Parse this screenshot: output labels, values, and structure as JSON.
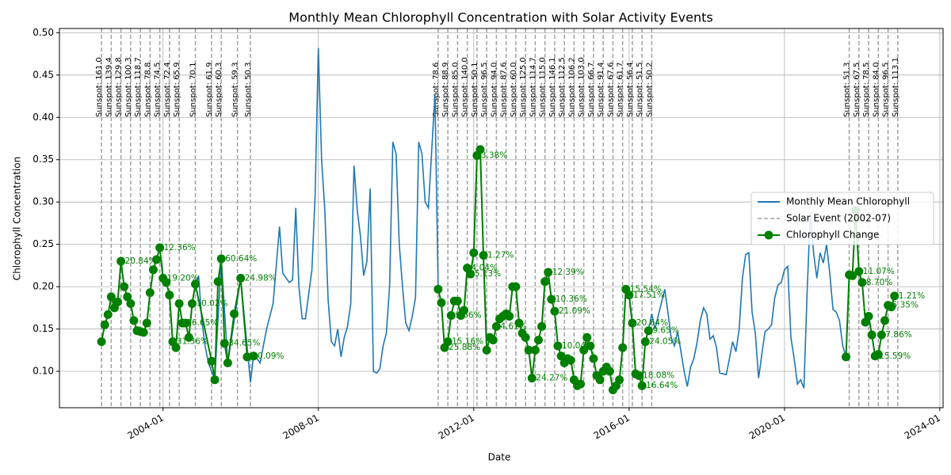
{
  "chart_data": {
    "type": "line",
    "title": "Monthly Mean Chlorophyll Concentration with Solar Activity Events",
    "xlabel": "Date",
    "ylabel": "Chlorophyll Concentration",
    "xlim": [
      "2001-05",
      "2024-02"
    ],
    "xticks": [
      "2004-01",
      "2008-01",
      "2012-01",
      "2016-01",
      "2020-01",
      "2024-01"
    ],
    "ylim": [
      0.057,
      0.505
    ],
    "yticks": [
      {
        "value": 0.1,
        "label": "0.10"
      },
      0.15,
      {
        "value": 0.2,
        "label": "0.20"
      },
      0.25,
      {
        "value": 0.3,
        "label": "0.30"
      },
      0.35,
      {
        "value": 0.4,
        "label": "0.40"
      },
      0.45,
      {
        "value": 0.5,
        "label": "0.50"
      }
    ],
    "grid": true,
    "legend": "center right",
    "series": [
      {
        "name": "Monthly Mean Chlorophyll",
        "color": "#1f77b4",
        "x": [
          "2002-06",
          "2002-07",
          "2002-08",
          "2002-09",
          "2002-10",
          "2002-11",
          "2002-12",
          "2003-01",
          "2003-02",
          "2003-03",
          "2003-04",
          "2003-05",
          "2003-06",
          "2003-07",
          "2003-08",
          "2003-09",
          "2003-10",
          "2003-11",
          "2003-12",
          "2004-01",
          "2004-02",
          "2004-03",
          "2004-04",
          "2004-05",
          "2004-06",
          "2004-07",
          "2004-08",
          "2004-09",
          "2004-10",
          "2004-11",
          "2004-12",
          "2005-01",
          "2005-02",
          "2005-03",
          "2005-05",
          "2005-07",
          "2005-09",
          "2006-01",
          "2006-04",
          "2006-05",
          "2006-07",
          "2006-09",
          "2006-11",
          "2007-01",
          "2007-02",
          "2007-04",
          "2007-05",
          "2007-06",
          "2007-07",
          "2007-08",
          "2007-09",
          "2007-11",
          "2007-12",
          "2008-01",
          "2008-02",
          "2008-03",
          "2008-04",
          "2008-05",
          "2008-06",
          "2008-07",
          "2008-08",
          "2008-09",
          "2008-10",
          "2008-11",
          "2008-12",
          "2009-01",
          "2009-02",
          "2009-03",
          "2009-04",
          "2009-05",
          "2009-06",
          "2009-07",
          "2009-08",
          "2009-09",
          "2009-10",
          "2009-11",
          "2009-12",
          "2010-01",
          "2010-02",
          "2010-03",
          "2010-04",
          "2010-05",
          "2010-06",
          "2010-07",
          "2010-08",
          "2010-09",
          "2010-10",
          "2010-11",
          "2011-01",
          "2011-02",
          "2011-03",
          "2011-04",
          "2011-05",
          "2011-06",
          "2011-07",
          "2011-08",
          "2011-09",
          "2011-10",
          "2011-11",
          "2011-12",
          "2012-01",
          "2012-02",
          "2012-03",
          "2012-04",
          "2012-05",
          "2012-06",
          "2012-07",
          "2012-08",
          "2012-09",
          "2012-10",
          "2012-11",
          "2012-12",
          "2013-01",
          "2013-02",
          "2013-03",
          "2013-04",
          "2013-05",
          "2013-06",
          "2013-07",
          "2013-08",
          "2013-09",
          "2013-10",
          "2013-11",
          "2013-12",
          "2014-01",
          "2014-02",
          "2014-03",
          "2014-04",
          "2014-05",
          "2014-06",
          "2014-07",
          "2014-08",
          "2014-09",
          "2014-10",
          "2014-11",
          "2014-12",
          "2015-01",
          "2015-02",
          "2015-03",
          "2015-04",
          "2015-05",
          "2015-06",
          "2015-07",
          "2015-08",
          "2015-09",
          "2015-10",
          "2015-11",
          "2015-12",
          "2016-01",
          "2016-02",
          "2016-03",
          "2016-04",
          "2016-05",
          "2016-06",
          "2016-07",
          "2016-08",
          "2016-09",
          "2016-12",
          "2017-01",
          "2017-02",
          "2017-03",
          "2017-04",
          "2017-06",
          "2017-07",
          "2017-08",
          "2017-09",
          "2017-10",
          "2017-11",
          "2017-12",
          "2018-01",
          "2018-02",
          "2018-03",
          "2018-04",
          "2018-05",
          "2018-07",
          "2018-08",
          "2018-09",
          "2018-10",
          "2018-11",
          "2018-12",
          "2019-01",
          "2019-02",
          "2019-03",
          "2019-04",
          "2019-05",
          "2019-06",
          "2019-07",
          "2019-08",
          "2019-09",
          "2019-10",
          "2019-11",
          "2019-12",
          "2020-01",
          "2020-02",
          "2020-03",
          "2020-04",
          "2020-05",
          "2020-06",
          "2020-07",
          "2020-08",
          "2020-09",
          "2020-10",
          "2020-11",
          "2020-12",
          "2021-01",
          "2021-02",
          "2021-03",
          "2021-04",
          "2021-05",
          "2021-06",
          "2021-07",
          "2021-08",
          "2021-09",
          "2021-10",
          "2021-11",
          "2021-12",
          "2022-01",
          "2022-02",
          "2022-03",
          "2022-04",
          "2022-05",
          "2022-06",
          "2022-07",
          "2022-08",
          "2022-09",
          "2022-10",
          "2022-11"
        ],
        "values": [
          0.135,
          0.155,
          0.167,
          0.188,
          0.175,
          0.182,
          0.23,
          0.2,
          0.188,
          0.18,
          0.16,
          0.148,
          0.147,
          0.146,
          0.157,
          0.193,
          0.22,
          0.232,
          0.246,
          0.21,
          0.205,
          0.19,
          0.135,
          0.128,
          0.18,
          0.157,
          0.157,
          0.14,
          0.18,
          0.203,
          0.213,
          0.16,
          0.13,
          0.11,
          0.09,
          0.233,
          0.11,
          0.21,
          0.087,
          0.12,
          0.11,
          0.15,
          0.18,
          0.271,
          0.216,
          0.205,
          0.208,
          0.293,
          0.2,
          0.162,
          0.162,
          0.22,
          0.31,
          0.482,
          0.35,
          0.29,
          0.185,
          0.135,
          0.13,
          0.15,
          0.117,
          0.14,
          0.153,
          0.18,
          0.343,
          0.29,
          0.26,
          0.213,
          0.23,
          0.316,
          0.1,
          0.098,
          0.103,
          0.13,
          0.145,
          0.2,
          0.371,
          0.357,
          0.25,
          0.2,
          0.157,
          0.148,
          0.165,
          0.187,
          0.371,
          0.357,
          0.3,
          0.293,
          0.427,
          0.197,
          0.181,
          0.128,
          0.135,
          0.166,
          0.183,
          0.183,
          0.166,
          0.172,
          0.222,
          0.215,
          0.24,
          0.355,
          0.362,
          0.237,
          0.125,
          0.14,
          0.137,
          0.153,
          0.162,
          0.165,
          0.168,
          0.165,
          0.2,
          0.2,
          0.157,
          0.145,
          0.14,
          0.125,
          0.092,
          0.125,
          0.137,
          0.153,
          0.206,
          0.217,
          0.185,
          0.171,
          0.13,
          0.118,
          0.11,
          0.115,
          0.113,
          0.09,
          0.083,
          0.085,
          0.125,
          0.14,
          0.13,
          0.115,
          0.095,
          0.09,
          0.1,
          0.105,
          0.1,
          0.078,
          0.083,
          0.09,
          0.128,
          0.197,
          0.19,
          0.157,
          0.097,
          0.095,
          0.083,
          0.135,
          0.148,
          0.168,
          0.15,
          0.197,
          0.17,
          0.14,
          0.13,
          0.147,
          0.1,
          0.082,
          0.105,
          0.115,
          0.134,
          0.16,
          0.175,
          0.168,
          0.138,
          0.142,
          0.128,
          0.098,
          0.096,
          0.115,
          0.135,
          0.123,
          0.15,
          0.21,
          0.238,
          0.24,
          0.17,
          0.145,
          0.092,
          0.12,
          0.147,
          0.15,
          0.155,
          0.187,
          0.202,
          0.205,
          0.22,
          0.224,
          0.14,
          0.115,
          0.085,
          0.09,
          0.08,
          0.195,
          0.287,
          0.24,
          0.21,
          0.24,
          0.228,
          0.25,
          0.215,
          0.173,
          0.17,
          0.16,
          0.13,
          0.117,
          0.214,
          0.213,
          0.29,
          0.218,
          0.205,
          0.158,
          0.165,
          0.143,
          0.118,
          0.12,
          0.143,
          0.16,
          0.178,
          0.176,
          0.189
        ]
      },
      {
        "name": "Chlorophyll Change",
        "color": "#008000",
        "marker": true,
        "x": [
          "2002-06",
          "2002-07",
          "2002-08",
          "2002-09",
          "2002-10",
          "2002-11",
          "2002-12",
          "2003-01",
          "2003-02",
          "2003-03",
          "2003-04",
          "2003-05",
          "2003-06",
          "2003-07",
          "2003-08",
          "2003-09",
          "2003-10",
          "2003-11",
          "2003-12",
          "2004-01",
          "2004-02",
          "2004-03",
          "2004-04",
          "2004-05",
          "2004-06",
          "2004-07",
          "2004-08",
          "2004-09",
          "2004-10",
          "2004-11",
          "2005-04",
          "2005-05",
          "2005-06",
          "2005-07",
          "2005-08",
          "2005-09",
          "2005-11",
          "2006-01",
          "2006-03",
          "2006-05",
          "2008-01",
          "2011-02",
          "2011-03",
          "2011-04",
          "2011-05",
          "2011-06",
          "2011-07",
          "2011-08",
          "2011-09",
          "2011-10",
          "2011-11",
          "2011-12",
          "2012-01",
          "2012-02",
          "2012-03",
          "2012-04",
          "2012-05",
          "2012-06",
          "2012-07",
          "2012-08",
          "2012-09",
          "2012-10",
          "2012-11",
          "2012-12",
          "2013-01",
          "2013-02",
          "2013-03",
          "2013-04",
          "2013-05",
          "2013-06",
          "2013-07",
          "2013-08",
          "2013-09",
          "2013-10",
          "2013-11",
          "2013-12",
          "2014-01",
          "2014-02",
          "2014-03",
          "2014-04",
          "2014-05",
          "2014-06",
          "2014-07",
          "2014-08",
          "2014-09",
          "2014-10",
          "2014-11",
          "2014-12",
          "2015-01",
          "2015-02",
          "2015-03",
          "2015-04",
          "2015-05",
          "2015-06",
          "2015-07",
          "2015-08",
          "2015-09",
          "2015-10",
          "2015-11",
          "2015-12",
          "2016-01",
          "2016-02",
          "2016-03",
          "2016-04",
          "2016-05",
          "2016-06",
          "2016-07",
          "2019-01",
          "2021-08",
          "2021-09",
          "2021-10",
          "2021-11",
          "2021-12",
          "2022-01",
          "2022-02",
          "2022-03",
          "2022-04",
          "2022-05",
          "2022-06",
          "2022-07",
          "2022-08",
          "2022-09",
          "2022-10",
          "2022-11"
        ],
        "values": [
          0.135,
          0.155,
          0.167,
          0.188,
          0.175,
          0.182,
          0.23,
          0.2,
          0.188,
          0.18,
          0.16,
          0.148,
          0.147,
          0.146,
          0.157,
          0.193,
          0.22,
          0.232,
          0.246,
          0.21,
          0.205,
          0.19,
          0.135,
          0.128,
          0.18,
          0.157,
          0.157,
          0.14,
          0.18,
          0.203,
          0.112,
          0.09,
          0.206,
          0.233,
          0.133,
          0.11,
          0.168,
          0.21,
          0.117,
          0.118,
          null,
          0.197,
          0.181,
          0.128,
          0.135,
          0.166,
          0.183,
          0.183,
          0.166,
          0.172,
          0.222,
          0.215,
          0.24,
          0.355,
          0.362,
          0.237,
          0.125,
          0.14,
          0.137,
          0.153,
          0.162,
          0.165,
          0.168,
          0.165,
          0.2,
          0.2,
          0.157,
          0.145,
          0.14,
          0.125,
          0.092,
          0.125,
          0.137,
          0.153,
          0.206,
          0.217,
          0.185,
          0.171,
          0.13,
          0.118,
          0.11,
          0.115,
          0.113,
          0.09,
          0.083,
          0.085,
          0.125,
          0.14,
          0.13,
          0.115,
          0.095,
          0.09,
          0.1,
          0.105,
          0.1,
          0.078,
          0.083,
          0.09,
          0.128,
          0.197,
          0.19,
          0.157,
          0.097,
          0.095,
          0.083,
          0.135,
          0.148,
          null,
          0.117,
          0.214,
          0.213,
          0.29,
          0.218,
          0.205,
          0.158,
          0.165,
          0.143,
          0.118,
          0.12,
          0.143,
          0.16,
          0.178,
          0.176,
          0.189
        ],
        "value_labels": [
          null,
          null,
          null,
          null,
          null,
          null,
          "20.84%",
          null,
          null,
          null,
          null,
          null,
          null,
          null,
          null,
          null,
          null,
          null,
          "12.36%",
          "19.20%",
          null,
          null,
          "31.36%",
          null,
          null,
          "16.65%",
          null,
          null,
          "10.02%",
          null,
          null,
          null,
          null,
          "60.64%",
          "34.65%",
          null,
          null,
          "24.98%",
          null,
          "0.09%",
          null,
          null,
          null,
          "25.88%",
          "15.16%",
          "5.56%",
          null,
          null,
          null,
          null,
          "4.04%",
          "5.13%",
          null,
          "3.38%",
          null,
          "1.27%",
          null,
          null,
          null,
          "4.61%",
          null,
          null,
          null,
          null,
          null,
          null,
          null,
          null,
          null,
          null,
          "24.27%",
          null,
          null,
          null,
          null,
          "12.39%",
          "10.36%",
          "21.09%",
          "10.04%",
          null,
          null,
          null,
          null,
          null,
          null,
          null,
          null,
          null,
          null,
          null,
          null,
          null,
          null,
          null,
          null,
          null,
          null,
          null,
          null,
          "15.54%",
          "17.51%",
          "20.64%",
          null,
          "18.08%",
          "16.64%",
          "24.05%",
          "9.65%",
          null,
          null,
          null,
          null,
          null,
          "11.07%",
          "8.70%",
          null,
          null,
          null,
          "15.59%",
          null,
          "7.86%",
          null,
          "5.35%",
          null,
          "1.21%"
        ]
      }
    ],
    "events": {
      "name": "Solar Event (2002-07)",
      "color": "#a0a0a0",
      "x": [
        "2002-06",
        "2002-09",
        "2002-12",
        "2003-03",
        "2003-06",
        "2003-09",
        "2003-12",
        "2004-03",
        "2004-06",
        "2004-11",
        "2005-04",
        "2005-07",
        "2005-12",
        "2006-04",
        "2011-02",
        "2011-05",
        "2011-08",
        "2011-11",
        "2012-02",
        "2012-05",
        "2012-08",
        "2012-11",
        "2013-02",
        "2013-05",
        "2013-08",
        "2013-11",
        "2014-02",
        "2014-05",
        "2014-08",
        "2014-11",
        "2015-02",
        "2015-05",
        "2015-08",
        "2015-11",
        "2016-02",
        "2016-05",
        "2016-08",
        "2021-09",
        "2021-12",
        "2022-03",
        "2022-06",
        "2022-09",
        "2022-12"
      ],
      "labels": [
        "Sunspot: 161.0",
        "Sunspot: 139.4",
        "Sunspot: 129.8",
        "Sunspot: 100.3",
        "Sunspot: 118.7",
        "Sunspot: 78.8",
        "Sunspot: 74.5",
        "Sunspot: 72.4",
        "Sunspot: 65.9",
        "Sunspot: 70.1",
        "Sunspot: 61.9",
        "Sunspot: 60.3",
        "Sunspot: 59.3",
        "Sunspot: 50.3",
        "Sunspot: 78.6",
        "Sunspot: 88.9",
        "Sunspot: 85.0",
        "Sunspot: 140.0",
        "Sunspot: 50.1",
        "Sunspot: 96.5",
        "Sunspot: 94.0",
        "Sunspot: 87.6",
        "Sunspot: 60.0",
        "Sunspot: 125.0",
        "Sunspot: 114.7",
        "Sunspot: 115.0",
        "Sunspot: 146.1",
        "Sunspot: 112.5",
        "Sunspot: 106.2",
        "Sunspot: 103.0",
        "Sunspot: 66.7",
        "Sunspot: 91.4",
        "Sunspot: 67.6",
        "Sunspot: 61.7",
        "Sunspot: 56.4",
        "Sunspot: 51.5",
        "Sunspot: 50.2",
        "Sunspot: 51.3",
        "Sunspot: 67.5",
        "Sunspot: 78.5",
        "Sunspot: 84.0",
        "Sunspot: 96.5",
        "Sunspot: 113.1"
      ]
    }
  }
}
